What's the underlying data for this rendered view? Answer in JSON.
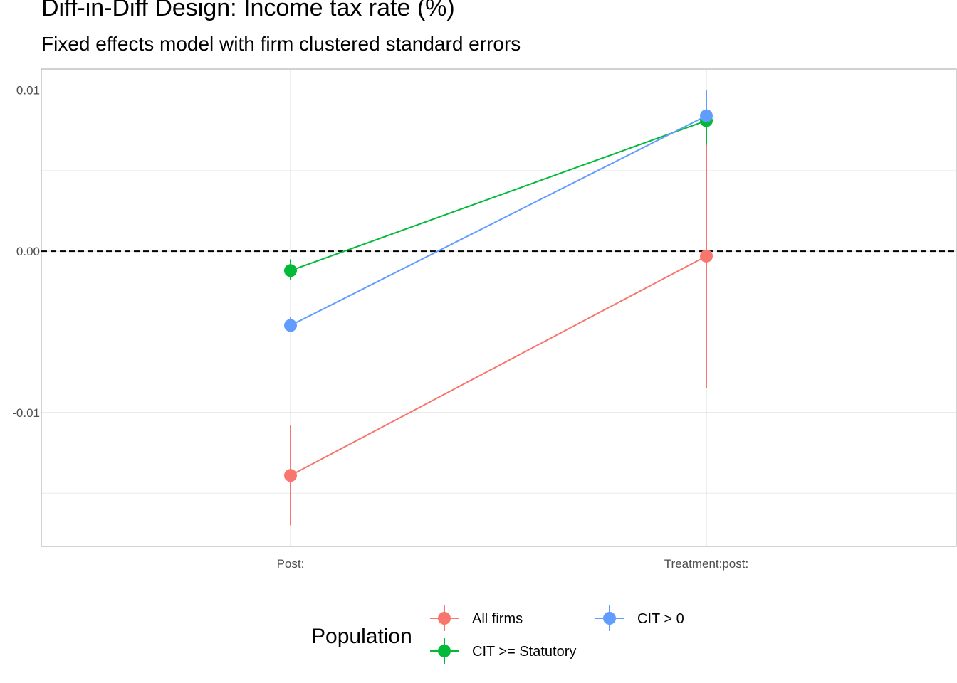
{
  "title": "Diff-in-Diff Design: Income tax rate  (%)",
  "subtitle": "Fixed effects model with firm clustered standard errors",
  "chart_data": {
    "type": "line",
    "categories": [
      "Post:",
      "Treatment:post:"
    ],
    "y_ticks": [
      0.01,
      0.0,
      -0.01
    ],
    "y_tick_labels": [
      "0.01",
      "0.00",
      "-0.01"
    ],
    "ylim": [
      -0.0183,
      0.0113
    ],
    "grid": true,
    "reference_line": {
      "y": 0,
      "style": "dashed"
    },
    "legend": {
      "title": "Population",
      "position": "bottom"
    },
    "series": [
      {
        "name": "All firms",
        "color": "#F8766D",
        "values": [
          -0.0139,
          -0.0003
        ],
        "lower": [
          -0.017,
          -0.0085
        ],
        "upper": [
          -0.0108,
          0.0066
        ]
      },
      {
        "name": "CIT >= Statutory",
        "color": "#00BA38",
        "values": [
          -0.0012,
          0.0081
        ],
        "lower": [
          -0.0018,
          0.0066
        ],
        "upper": [
          -0.0005,
          0.0091
        ]
      },
      {
        "name": "CIT > 0",
        "color": "#619CFF",
        "values": [
          -0.0046,
          0.0084
        ],
        "lower": [
          -0.005,
          0.0078
        ],
        "upper": [
          -0.0041,
          0.01
        ]
      }
    ]
  }
}
